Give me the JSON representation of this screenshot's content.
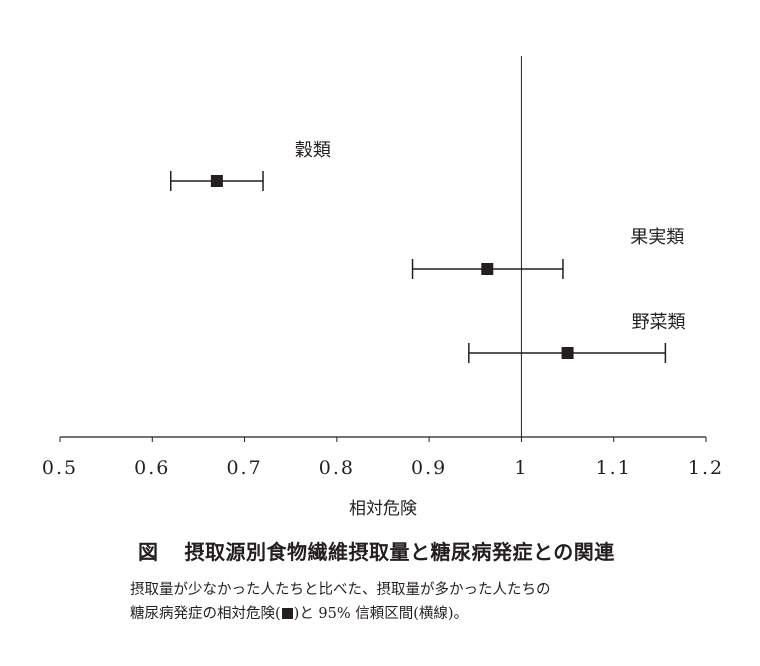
{
  "chart_data": {
    "type": "forest",
    "xlabel": "相対危険",
    "xlim": [
      0.5,
      1.2
    ],
    "x_ticks": [
      "0.5",
      "0.6",
      "0.7",
      "0.8",
      "0.9",
      "1",
      "1.1",
      "1.2"
    ],
    "reference_line": 1,
    "marker": "square",
    "grid": false,
    "series": [
      {
        "label": "穀類",
        "estimate": 0.67,
        "ci_low": 0.62,
        "ci_high": 0.72
      },
      {
        "label": "果実類",
        "estimate": 0.963,
        "ci_low": 0.882,
        "ci_high": 1.045
      },
      {
        "label": "野菜類",
        "estimate": 1.05,
        "ci_low": 0.943,
        "ci_high": 1.156
      }
    ]
  },
  "caption": {
    "fig_label": "図",
    "title": "摂取源別食物繊維摂取量と糖尿病発症との関連",
    "line1": "摂取量が少なかった人たちと比べた、摂取量が多かった人たちの",
    "line2_before": "糖尿病発症の相対危険(",
    "line2_after": ")と 95% 信頼区間(横線)。"
  },
  "colors": {
    "ink": "#231f20",
    "background": "#ffffff"
  }
}
